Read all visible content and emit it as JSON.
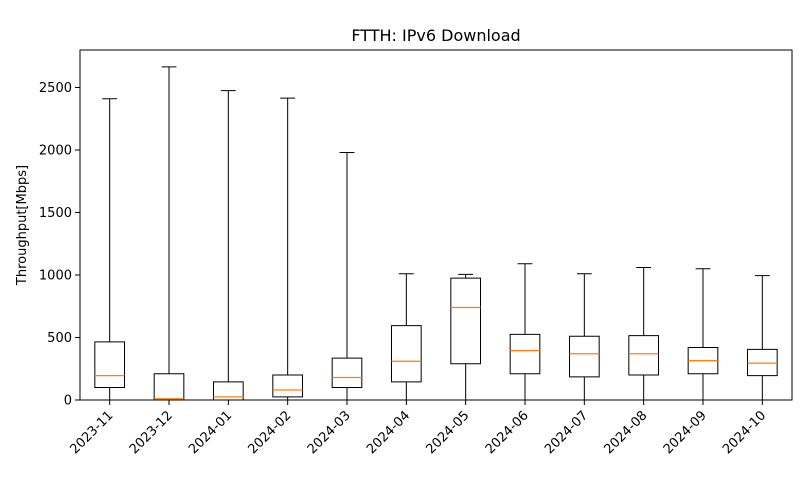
{
  "chart_data": {
    "type": "boxplot",
    "title": "FTTH: IPv6 Download",
    "xlabel": "",
    "ylabel": "Throughput[Mbps]",
    "ylim": [
      0,
      2800
    ],
    "yticks": [
      0,
      500,
      1000,
      1500,
      2000,
      2500
    ],
    "grid": false,
    "categories": [
      "2023-11",
      "2023-12",
      "2024-01",
      "2024-02",
      "2024-03",
      "2024-04",
      "2024-05",
      "2024-06",
      "2024-07",
      "2024-08",
      "2024-09",
      "2024-10"
    ],
    "boxes": [
      {
        "whisker_low": 0,
        "q1": 100,
        "median": 195,
        "q3": 465,
        "whisker_high": 2410
      },
      {
        "whisker_low": 0,
        "q1": 0,
        "median": 10,
        "q3": 210,
        "whisker_high": 2665
      },
      {
        "whisker_low": 0,
        "q1": 0,
        "median": 25,
        "q3": 145,
        "whisker_high": 2475
      },
      {
        "whisker_low": 0,
        "q1": 25,
        "median": 80,
        "q3": 200,
        "whisker_high": 2415
      },
      {
        "whisker_low": 0,
        "q1": 100,
        "median": 180,
        "q3": 335,
        "whisker_high": 1980
      },
      {
        "whisker_low": 0,
        "q1": 145,
        "median": 310,
        "q3": 595,
        "whisker_high": 1010
      },
      {
        "whisker_low": 0,
        "q1": 290,
        "median": 740,
        "q3": 975,
        "whisker_high": 1005
      },
      {
        "whisker_low": 0,
        "q1": 210,
        "median": 395,
        "q3": 525,
        "whisker_high": 1090
      },
      {
        "whisker_low": 0,
        "q1": 185,
        "median": 370,
        "q3": 510,
        "whisker_high": 1010
      },
      {
        "whisker_low": 0,
        "q1": 200,
        "median": 370,
        "q3": 515,
        "whisker_high": 1060
      },
      {
        "whisker_low": 0,
        "q1": 210,
        "median": 315,
        "q3": 420,
        "whisker_high": 1050
      },
      {
        "whisker_low": 0,
        "q1": 195,
        "median": 295,
        "q3": 405,
        "whisker_high": 995
      }
    ],
    "colors": {
      "box": "#000000",
      "median": "#ff7f0e"
    }
  }
}
